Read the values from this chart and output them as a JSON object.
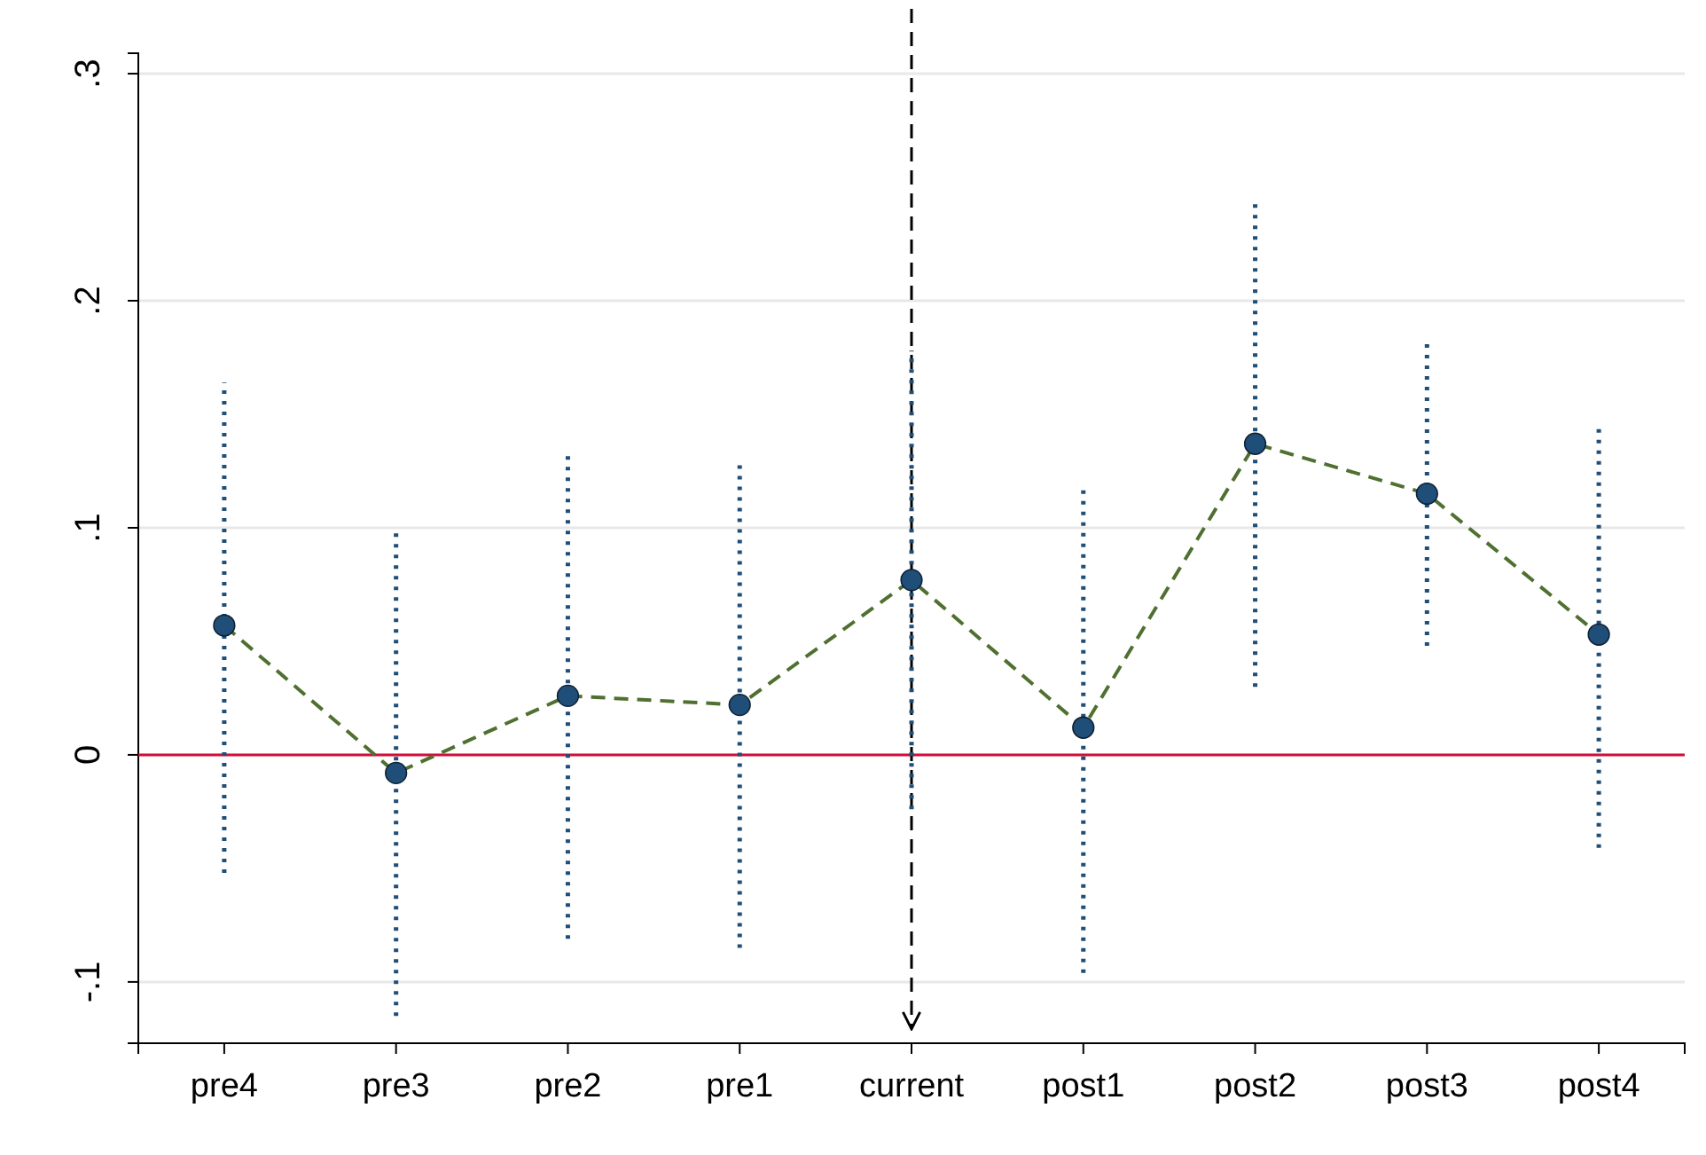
{
  "chart_data": {
    "type": "line",
    "categories": [
      "pre4",
      "pre3",
      "pre2",
      "pre1",
      "current",
      "post1",
      "post2",
      "post3",
      "post4"
    ],
    "ylim": [
      -0.127,
      0.309
    ],
    "yticks": [
      {
        "value": -0.1,
        "label": "-.1"
      },
      0,
      {
        "value": 0.1,
        "label": ".1"
      },
      {
        "value": 0.2,
        "label": ".2"
      },
      {
        "value": 0.3,
        "label": ".3"
      }
    ],
    "grid": "y",
    "series": [
      {
        "color": "#4f7030",
        "line_style": "dashed",
        "marker": "none",
        "values": [
          0.057,
          -0.008,
          0.026,
          0.022,
          0.077,
          0.012,
          0.137,
          0.115,
          0.053
        ]
      },
      {
        "type": "scatter",
        "color": "#1f4e79",
        "marker": "circle",
        "values": [
          0.057,
          -0.008,
          0.026,
          0.022,
          0.077,
          0.012,
          0.137,
          0.115,
          0.053
        ],
        "errors": [
          [
            -0.052,
            0.164
          ],
          [
            -0.115,
            0.1
          ],
          [
            -0.081,
            0.132
          ],
          [
            -0.085,
            0.129
          ],
          [
            -0.024,
            0.178
          ],
          [
            -0.096,
            0.118
          ],
          [
            0.03,
            0.244
          ],
          [
            0.048,
            0.182
          ],
          [
            -0.041,
            0.145
          ]
        ]
      }
    ],
    "ref_lines": [
      {
        "axis": "y",
        "value": 0,
        "color": "#d0103a",
        "line_style": "solid"
      },
      {
        "axis": "x",
        "value": "current",
        "color": "#000000",
        "line_style": "dashed"
      }
    ]
  }
}
